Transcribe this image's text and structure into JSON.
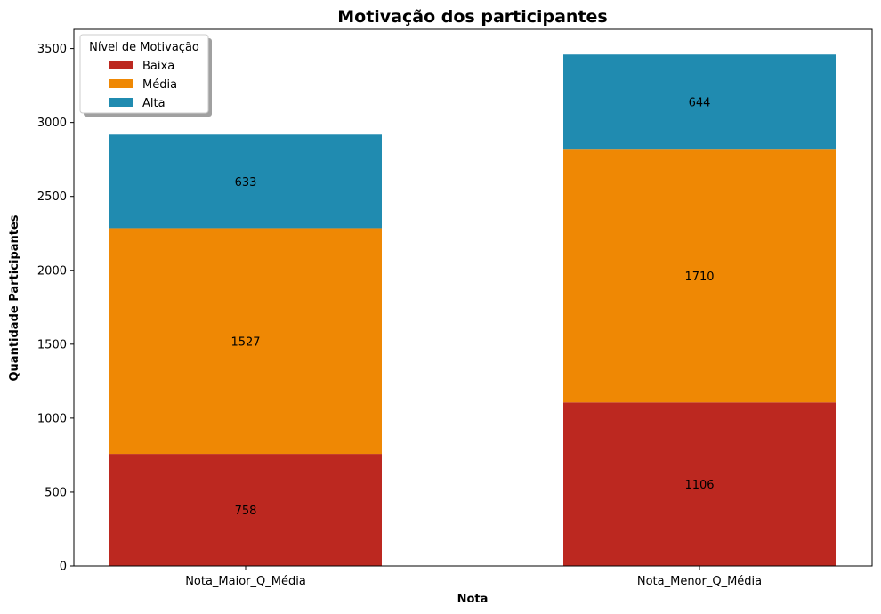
{
  "chart_data": {
    "type": "bar",
    "stacked": true,
    "title": "Motivação dos participantes",
    "xlabel": "Nota",
    "ylabel": "Quantidade Participantes",
    "categories": [
      "Nota_Maior_Q_Média",
      "Nota_Menor_Q_Média"
    ],
    "ylim": [
      0,
      3630
    ],
    "yticks": [
      0,
      500,
      1000,
      1500,
      2000,
      2500,
      3000,
      3500
    ],
    "series": [
      {
        "name": "Baixa",
        "values": [
          758,
          1106
        ],
        "color": "#bc2820"
      },
      {
        "name": "Média",
        "values": [
          1527,
          1710
        ],
        "color": "#ef8804"
      },
      {
        "name": "Alta",
        "values": [
          633,
          644
        ],
        "color": "#208bb0"
      }
    ],
    "legend": {
      "title": "Nível de Motivação",
      "placement": "top-left"
    },
    "grid": false
  }
}
